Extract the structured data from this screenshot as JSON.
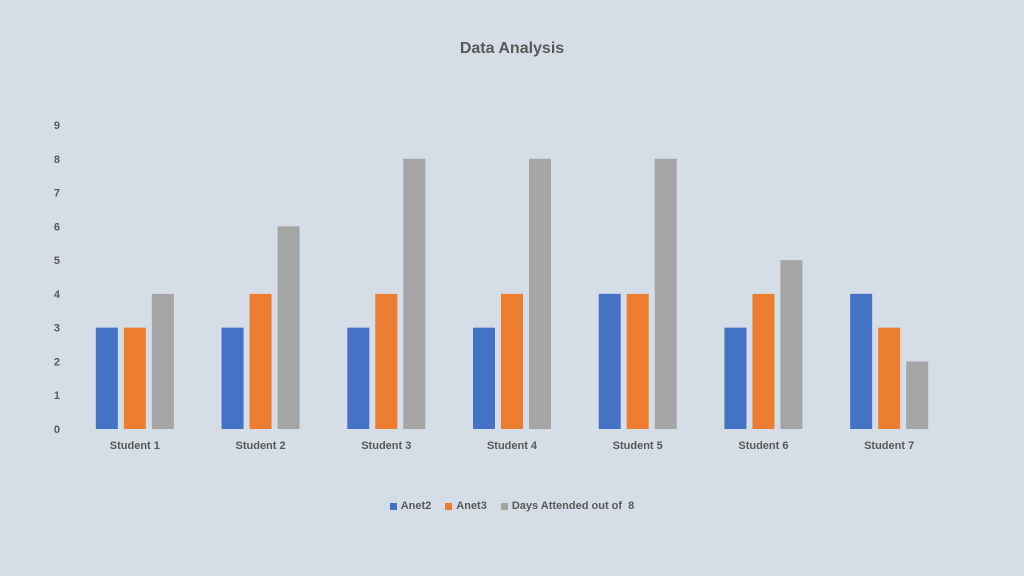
{
  "chart_data": {
    "type": "bar",
    "title": "Data Analysis",
    "categories": [
      "Student 1",
      "Student 2",
      "Student 3",
      "Student 4",
      "Student 5",
      "Student 6",
      "Student 7"
    ],
    "series": [
      {
        "name": "Anet2",
        "color": "#4472c4",
        "values": [
          3,
          3,
          3,
          3,
          4,
          3,
          4
        ]
      },
      {
        "name": "Anet3",
        "color": "#ed7d31",
        "values": [
          3,
          4,
          4,
          4,
          4,
          4,
          3
        ]
      },
      {
        "name": "Days Attended out of  8",
        "color": "#a5a5a5",
        "values": [
          4,
          6,
          8,
          8,
          8,
          5,
          2
        ]
      }
    ],
    "xlabel": "",
    "ylabel": "",
    "ylim": [
      0,
      9
    ],
    "yticks": [
      "0",
      "1",
      "2",
      "3",
      "4",
      "5",
      "6",
      "7",
      "8",
      "9"
    ],
    "grid": false,
    "legend": "bottom"
  }
}
